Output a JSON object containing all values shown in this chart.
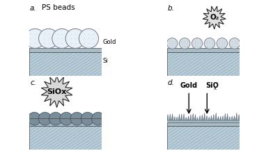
{
  "bg_color": "#ffffff",
  "substrate_color": "#b8ccd6",
  "hatch_line_color": "#7a9aaa",
  "bead_color_a": "#e8f0f8",
  "bead_color_b": "#d4dce4",
  "bead_color_c": "#7a8e9a",
  "gold_layer_color": "#a8bcc8",
  "spike_color": "#7a8e9a",
  "panel_labels": [
    "a.",
    "b.",
    "c.",
    "d."
  ],
  "label_a_text": "PS beads",
  "label_b_text": "O₂",
  "label_c_text": "SiOx",
  "label_d_gold": "Gold",
  "label_d_siox": "SiO",
  "label_d_x": "x",
  "side_label_gold": "Gold",
  "side_label_si": "Si"
}
